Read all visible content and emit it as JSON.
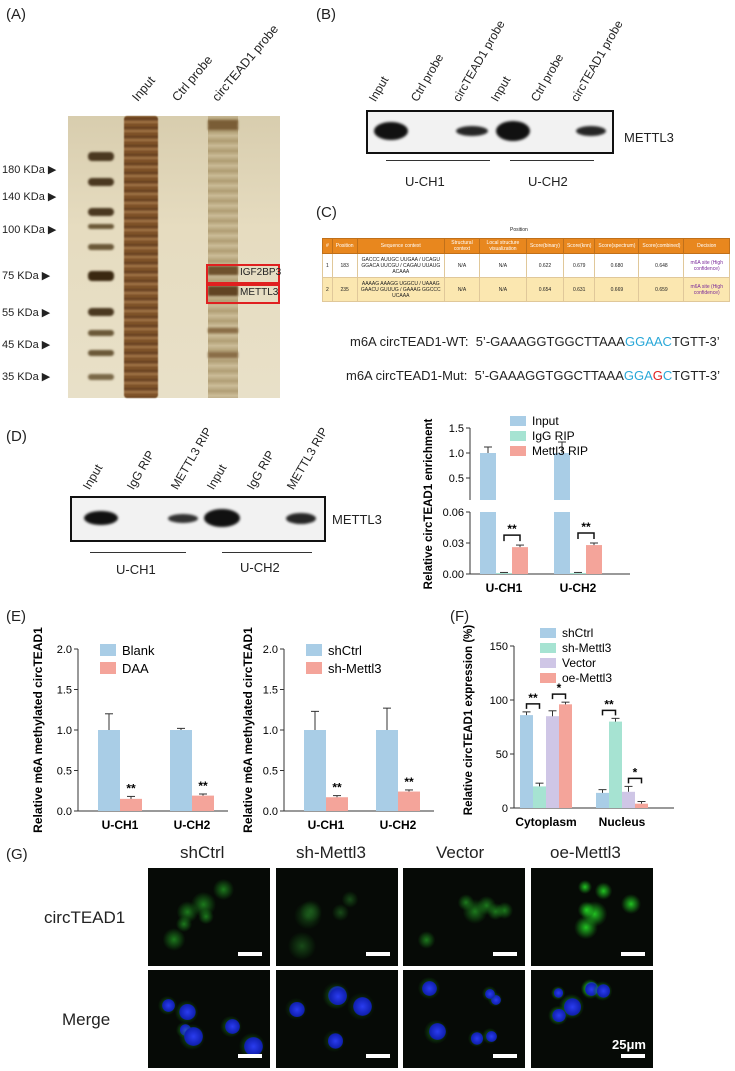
{
  "panels": {
    "A": {
      "label": "(A)",
      "lanes": [
        "Input",
        "Ctrl probe",
        "circTEAD1 probe"
      ],
      "markers": [
        "180 KDa",
        "140 KDa",
        "100 KDa",
        "75 KDa",
        "55 KDa",
        "45 KDa",
        "35 KDa"
      ],
      "boxes": [
        "IGF2BP3",
        "METTL3"
      ]
    },
    "B": {
      "label": "(B)",
      "lanes": [
        "Input",
        "Ctrl probe",
        "circTEAD1 probe",
        "Input",
        "Ctrl probe",
        "circTEAD1 probe"
      ],
      "protein": "METTL3",
      "groups": [
        "U-CH1",
        "U-CH2"
      ]
    },
    "C": {
      "label": "(C)",
      "table_title": "Position",
      "headers": [
        "#",
        "Position",
        "Sequence context",
        "Structural context",
        "Local structure visualization",
        "Score(binary)",
        "Score(knn)",
        "Score(spectrum)",
        "Score(combined)",
        "Decision"
      ],
      "rows": [
        {
          "n": "1",
          "pos": "183",
          "seq": "GACCC AUUGC UUGAA / UCAGU GGACA UUCGU / CAGAU UUAUG ACAAA",
          "struct": "N/A",
          "vis": "N/A",
          "s1": "0.622",
          "s2": "0.679",
          "s3": "0.680",
          "s4": "0.648",
          "dec": "m6A site (High confidence)"
        },
        {
          "n": "2",
          "pos": "235",
          "seq": "AAAAG AAAGG UGGCU / UAAAG GAACU GUUUG / GAAAG GGCCC UCAAA",
          "struct": "N/A",
          "vis": "N/A",
          "s1": "0.654",
          "s2": "0.631",
          "s3": "0.669",
          "s4": "0.659",
          "dec": "m6A site (High confidence)"
        }
      ],
      "wt_label": "m6A circTEAD1-WT:",
      "wt_seq_pre": "5’-GAAAGGTGGCTTAAA",
      "wt_seq_motif": "GGAAC",
      "wt_seq_post": "TGTT-3’",
      "mut_label": "m6A circTEAD1-Mut:",
      "mut_seq_pre": "5’-GAAAGGTGGCTTAAA",
      "mut_seq_motif1": "GGA",
      "mut_seq_mut": "G",
      "mut_seq_motif2": "C",
      "mut_seq_post": "TGTT-3’"
    },
    "D": {
      "label": "(D)",
      "lanes": [
        "Input",
        "IgG RIP",
        "METTL3 RIP",
        "Input",
        "IgG RIP",
        "METTL3 RIP"
      ],
      "protein": "METTL3",
      "groups": [
        "U-CH1",
        "U-CH2"
      ]
    },
    "E": {
      "label": "(E)"
    },
    "F": {
      "label": "(F)"
    },
    "G": {
      "label": "(G)",
      "columns": [
        "shCtrl",
        "sh-Mettl3",
        "Vector",
        "oe-Mettl3"
      ],
      "rows": [
        "circTEAD1",
        "Merge"
      ],
      "scale": "25μm"
    }
  },
  "chart_data": [
    {
      "id": "D-chart",
      "type": "bar",
      "ylabel": "Relative circTEAD1 enrichment",
      "categories": [
        "U-CH1",
        "U-CH2"
      ],
      "series": [
        {
          "name": "Input",
          "values": [
            1.0,
            1.0
          ],
          "errors": [
            0.12,
            0.22
          ],
          "color": "#a9cde6"
        },
        {
          "name": "IgG RIP",
          "values": [
            0.001,
            0.001
          ],
          "errors": [
            0.0005,
            0.0005
          ],
          "color": "#a6e3d2"
        },
        {
          "name": "Mettl3 RIP",
          "values": [
            0.026,
            0.028
          ],
          "errors": [
            0.002,
            0.002
          ],
          "color": "#f4a49a"
        }
      ],
      "axis_break": {
        "lower": [
          0.0,
          0.06
        ],
        "upper": [
          0.06,
          1.5
        ]
      },
      "yticks_lower": [
        "0.00",
        "0.03",
        "0.06"
      ],
      "yticks_upper": [
        "0.5",
        "1.0",
        "1.5"
      ],
      "annotations": [
        "**",
        "**"
      ]
    },
    {
      "id": "E1-chart",
      "type": "bar",
      "ylabel": "Relative m6A methylated circTEAD1",
      "categories": [
        "U-CH1",
        "U-CH2"
      ],
      "series": [
        {
          "name": "Blank",
          "values": [
            1.0,
            1.0
          ],
          "errors": [
            0.2,
            0.02
          ],
          "color": "#a9cde6"
        },
        {
          "name": "DAA",
          "values": [
            0.15,
            0.19
          ],
          "errors": [
            0.03,
            0.02
          ],
          "color": "#f4a49a"
        }
      ],
      "ylim": [
        0,
        2.0
      ],
      "yticks": [
        "0.0",
        "0.5",
        "1.0",
        "1.5",
        "2.0"
      ],
      "annotations": [
        "**",
        "**"
      ]
    },
    {
      "id": "E2-chart",
      "type": "bar",
      "ylabel": "Relative m6A methylated circTEAD1",
      "categories": [
        "U-CH1",
        "U-CH2"
      ],
      "series": [
        {
          "name": "shCtrl",
          "values": [
            1.0,
            1.0
          ],
          "errors": [
            0.23,
            0.27
          ],
          "color": "#a9cde6"
        },
        {
          "name": "sh-Mettl3",
          "values": [
            0.17,
            0.24
          ],
          "errors": [
            0.02,
            0.02
          ],
          "color": "#f4a49a"
        }
      ],
      "ylim": [
        0,
        2.0
      ],
      "yticks": [
        "0.0",
        "0.5",
        "1.0",
        "1.5",
        "2.0"
      ],
      "annotations": [
        "**",
        "**"
      ]
    },
    {
      "id": "F-chart",
      "type": "bar",
      "ylabel": "Relative circTEAD1 expression (%)",
      "categories": [
        "Cytoplasm",
        "Nucleus"
      ],
      "series": [
        {
          "name": "shCtrl",
          "values": [
            86,
            14
          ],
          "errors": [
            3,
            3
          ],
          "color": "#a9cde6"
        },
        {
          "name": "sh-Mettl3",
          "values": [
            20,
            80
          ],
          "errors": [
            3,
            3
          ],
          "color": "#a6e3d2"
        },
        {
          "name": "Vector",
          "values": [
            85,
            15
          ],
          "errors": [
            5,
            5
          ],
          "color": "#cfc6e6"
        },
        {
          "name": "oe-Mettl3",
          "values": [
            96,
            4
          ],
          "errors": [
            2,
            2
          ],
          "color": "#f4a49a"
        }
      ],
      "ylim": [
        0,
        150
      ],
      "yticks": [
        "0",
        "50",
        "100",
        "150"
      ],
      "annotations": [
        "**",
        "*",
        "**",
        "*"
      ]
    }
  ]
}
